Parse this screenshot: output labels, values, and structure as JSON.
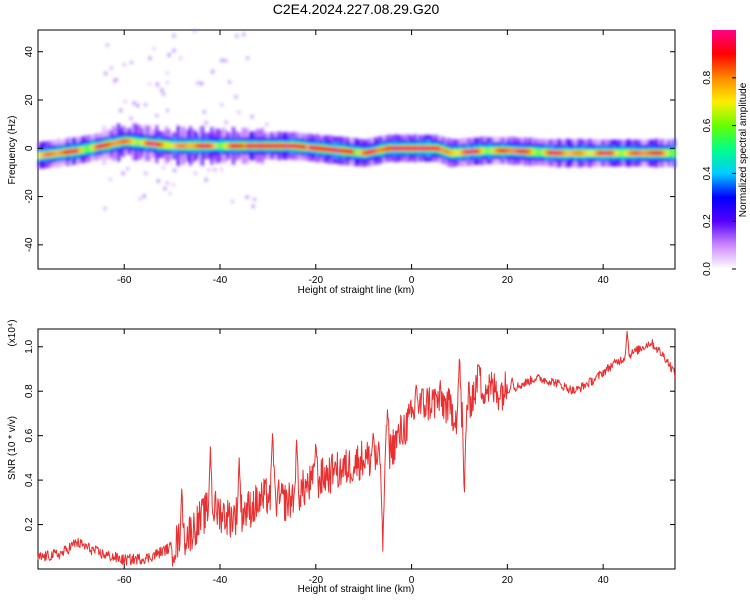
{
  "title": "C2E4.2024.227.08.29.G20",
  "chart_data": [
    {
      "type": "heatmap",
      "xlabel": "Height of straight line (km)",
      "ylabel": "Frequency (Hz)",
      "xlim": [
        -78,
        55
      ],
      "ylim": [
        -50,
        49
      ],
      "x_ticks": [
        -60,
        -40,
        -20,
        0,
        20,
        40
      ],
      "y_ticks": [
        -40,
        -20,
        0,
        20,
        40
      ],
      "colorbar": {
        "label": "Normalized spectral amplitude",
        "range": [
          0,
          1
        ],
        "ticks": [
          0.0,
          0.2,
          0.4,
          0.6,
          0.8
        ],
        "colors": [
          "#ffffff",
          "#cc88ff",
          "#5500ff",
          "#0000ff",
          "#00ccff",
          "#00ff88",
          "#66ff00",
          "#ffee00",
          "#ff8800",
          "#ff0000",
          "#ff0088"
        ]
      },
      "ridge_frequency_hz": [
        [
          -78,
          -3
        ],
        [
          -70,
          -1
        ],
        [
          -65,
          1
        ],
        [
          -60,
          3
        ],
        [
          -55,
          2
        ],
        [
          -50,
          1
        ],
        [
          -45,
          1
        ],
        [
          -40,
          1
        ],
        [
          -35,
          1
        ],
        [
          -30,
          1
        ],
        [
          -25,
          1
        ],
        [
          -20,
          0
        ],
        [
          -15,
          -1
        ],
        [
          -10,
          -2
        ],
        [
          -5,
          0
        ],
        [
          0,
          0
        ],
        [
          5,
          0
        ],
        [
          8,
          -2
        ],
        [
          15,
          -1
        ],
        [
          20,
          -1
        ],
        [
          30,
          -2
        ],
        [
          40,
          -2
        ],
        [
          55,
          -2
        ]
      ]
    },
    {
      "type": "line",
      "xlabel": "Height of straight line (km)",
      "ylabel": "SNR (10 * v/v)",
      "y_multiplier": "(x10⁴)",
      "xlim": [
        -78,
        55
      ],
      "ylim": [
        0,
        1.08
      ],
      "x_ticks": [
        -60,
        -40,
        -20,
        0,
        20,
        40
      ],
      "y_ticks": [
        0.2,
        0.4,
        0.6,
        0.8,
        1.0
      ],
      "color": "#e83030",
      "anchors": [
        [
          -78,
          0.05
        ],
        [
          -73,
          0.07
        ],
        [
          -70,
          0.12
        ],
        [
          -65,
          0.07
        ],
        [
          -60,
          0.04
        ],
        [
          -55,
          0.05
        ],
        [
          -50,
          0.1
        ],
        [
          -46,
          0.17
        ],
        [
          -42,
          0.28
        ],
        [
          -38,
          0.23
        ],
        [
          -34,
          0.27
        ],
        [
          -30,
          0.33
        ],
        [
          -26,
          0.3
        ],
        [
          -22,
          0.37
        ],
        [
          -18,
          0.42
        ],
        [
          -14,
          0.45
        ],
        [
          -10,
          0.5
        ],
        [
          -6,
          0.48
        ],
        [
          -2,
          0.62
        ],
        [
          2,
          0.74
        ],
        [
          6,
          0.76
        ],
        [
          10,
          0.68
        ],
        [
          14,
          0.83
        ],
        [
          18,
          0.8
        ],
        [
          22,
          0.82
        ],
        [
          26,
          0.86
        ],
        [
          30,
          0.84
        ],
        [
          34,
          0.8
        ],
        [
          38,
          0.85
        ],
        [
          42,
          0.92
        ],
        [
          46,
          0.97
        ],
        [
          50,
          1.02
        ],
        [
          53,
          0.95
        ],
        [
          55,
          0.88
        ]
      ],
      "spikes": [
        [
          -48,
          0.36
        ],
        [
          -42,
          0.55
        ],
        [
          -36,
          0.5
        ],
        [
          -29,
          0.63
        ],
        [
          -24,
          0.58
        ],
        [
          -20,
          0.58
        ],
        [
          -16,
          0.48
        ],
        [
          -8,
          0.62
        ],
        [
          -6,
          0.08
        ],
        [
          -5,
          0.73
        ],
        [
          1,
          0.84
        ],
        [
          10,
          0.97
        ],
        [
          11,
          0.31
        ],
        [
          14,
          0.93
        ],
        [
          21,
          0.86
        ],
        [
          45,
          1.07
        ]
      ]
    }
  ]
}
